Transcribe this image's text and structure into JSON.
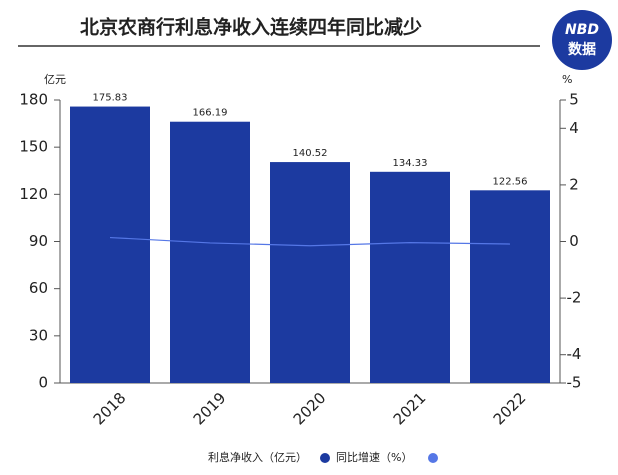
{
  "chart_data": {
    "type": "bar_line",
    "title": "北京农商行利息净收入连续四年同比减少",
    "logo": [
      "NBD",
      "数据"
    ],
    "y_unit": "亿元",
    "y2_unit": "%",
    "categories": [
      "2018",
      "2019",
      "2020",
      "2021",
      "2022"
    ],
    "series": [
      {
        "name": "利息净收入（亿元）",
        "color": "#1c3aa0",
        "type": "bar",
        "values": [
          175.83,
          166.19,
          140.52,
          134.33,
          122.56
        ]
      },
      {
        "name": "同比增速（%）",
        "color": "#5577e6",
        "type": "line",
        "axis": "y2",
        "values": [
          0.14,
          -0.05,
          -0.15,
          -0.04,
          -0.09
        ]
      }
    ],
    "ylim": [
      0,
      180
    ],
    "yticks": [
      0,
      30,
      60,
      90,
      120,
      150,
      180
    ],
    "y2lim": [
      -5,
      5
    ],
    "y2ticks": [
      -5,
      -4,
      -2,
      0,
      2,
      4,
      5
    ]
  }
}
